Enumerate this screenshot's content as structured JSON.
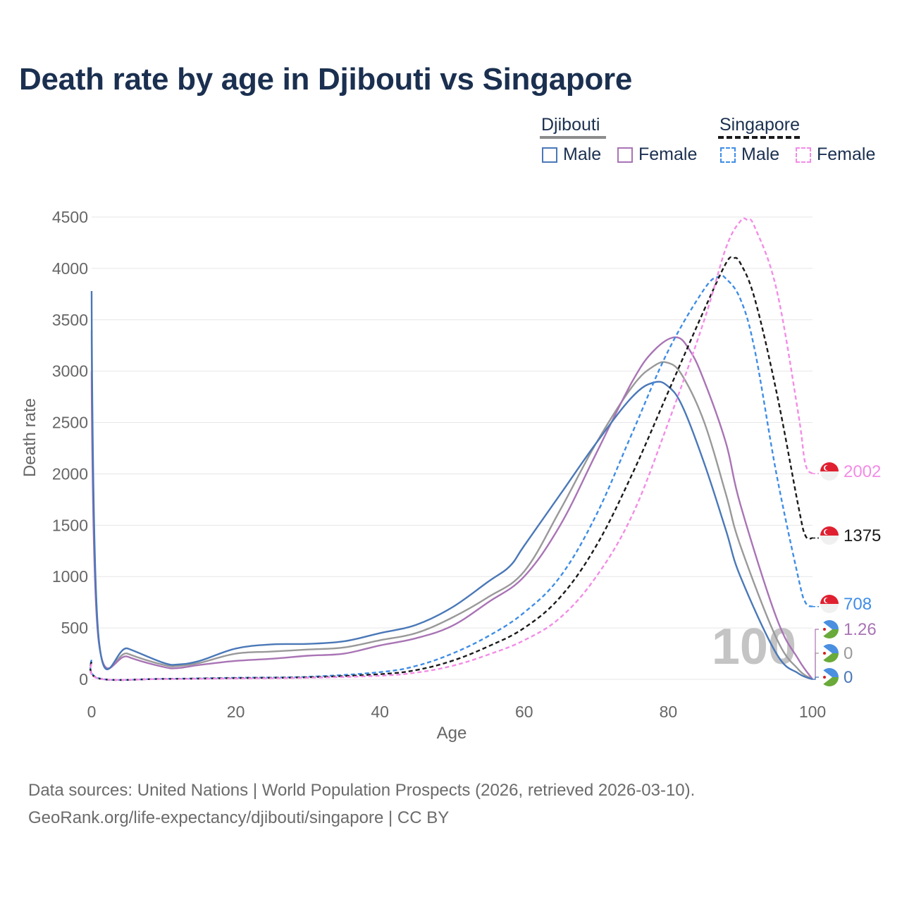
{
  "title": "Death rate by age in Djibouti vs Singapore",
  "legend": {
    "groups": [
      {
        "name": "Djibouti",
        "line_style": "solid",
        "line_color": "#8c8c8c",
        "items": [
          {
            "label": "Male",
            "color": "#4a78b8"
          },
          {
            "label": "Female",
            "color": "#a974b5"
          }
        ]
      },
      {
        "name": "Singapore",
        "line_style": "dashed",
        "line_color": "#1a1a1a",
        "items": [
          {
            "label": "Male",
            "color": "#3f8de6"
          },
          {
            "label": "Female",
            "color": "#f38ce6"
          }
        ]
      }
    ]
  },
  "chart_data": {
    "type": "line",
    "title": "Death rate by age in Djibouti vs Singapore",
    "xlabel": "Age",
    "ylabel": "Death rate",
    "xlim": [
      0,
      100
    ],
    "ylim": [
      0,
      4500
    ],
    "x_ticks": [
      0,
      20,
      40,
      60,
      80,
      100
    ],
    "y_ticks": [
      0,
      500,
      1000,
      1500,
      2000,
      2500,
      3000,
      3500,
      4000,
      4500
    ],
    "grid": true,
    "age_watermark": "100",
    "series": [
      {
        "name": "Djibouti Total",
        "country": "Djibouti",
        "sex": "Total",
        "color": "#999999",
        "dash": "solid",
        "points": [
          [
            0,
            3400
          ],
          [
            1,
            380
          ],
          [
            5,
            250
          ],
          [
            10,
            140
          ],
          [
            12,
            130
          ],
          [
            15,
            160
          ],
          [
            20,
            250
          ],
          [
            25,
            270
          ],
          [
            30,
            290
          ],
          [
            35,
            310
          ],
          [
            40,
            380
          ],
          [
            45,
            450
          ],
          [
            50,
            600
          ],
          [
            55,
            800
          ],
          [
            60,
            1050
          ],
          [
            65,
            1650
          ],
          [
            70,
            2300
          ],
          [
            75,
            2850
          ],
          [
            78,
            3050
          ],
          [
            80,
            3080
          ],
          [
            82,
            2950
          ],
          [
            85,
            2500
          ],
          [
            88,
            1800
          ],
          [
            90,
            1300
          ],
          [
            95,
            400
          ],
          [
            98,
            100
          ],
          [
            100,
            0
          ]
        ],
        "end_value": "0"
      },
      {
        "name": "Djibouti Female",
        "country": "Djibouti",
        "sex": "Female",
        "color": "#a974b5",
        "dash": "solid",
        "points": [
          [
            0,
            3000
          ],
          [
            1,
            360
          ],
          [
            5,
            220
          ],
          [
            10,
            120
          ],
          [
            12,
            110
          ],
          [
            15,
            140
          ],
          [
            20,
            180
          ],
          [
            25,
            200
          ],
          [
            30,
            230
          ],
          [
            35,
            250
          ],
          [
            40,
            330
          ],
          [
            45,
            400
          ],
          [
            50,
            520
          ],
          [
            55,
            750
          ],
          [
            60,
            1000
          ],
          [
            65,
            1500
          ],
          [
            70,
            2200
          ],
          [
            75,
            2900
          ],
          [
            78,
            3200
          ],
          [
            81,
            3330
          ],
          [
            83,
            3200
          ],
          [
            85,
            2900
          ],
          [
            88,
            2300
          ],
          [
            90,
            1700
          ],
          [
            95,
            600
          ],
          [
            98,
            200
          ],
          [
            100,
            1.26
          ]
        ],
        "end_value": "1.26"
      },
      {
        "name": "Djibouti Male",
        "country": "Djibouti",
        "sex": "Male",
        "color": "#4a78b8",
        "dash": "solid",
        "points": [
          [
            0,
            3780
          ],
          [
            1,
            390
          ],
          [
            5,
            300
          ],
          [
            10,
            160
          ],
          [
            12,
            145
          ],
          [
            15,
            180
          ],
          [
            20,
            300
          ],
          [
            25,
            340
          ],
          [
            30,
            345
          ],
          [
            35,
            370
          ],
          [
            40,
            450
          ],
          [
            45,
            530
          ],
          [
            50,
            700
          ],
          [
            55,
            950
          ],
          [
            58,
            1100
          ],
          [
            60,
            1300
          ],
          [
            65,
            1800
          ],
          [
            70,
            2300
          ],
          [
            75,
            2750
          ],
          [
            78,
            2890
          ],
          [
            80,
            2850
          ],
          [
            82,
            2650
          ],
          [
            85,
            2100
          ],
          [
            88,
            1450
          ],
          [
            90,
            1000
          ],
          [
            95,
            250
          ],
          [
            98,
            60
          ],
          [
            100,
            0
          ]
        ],
        "end_value": "0"
      },
      {
        "name": "Singapore Male",
        "country": "Singapore",
        "sex": "Male",
        "color": "#3f8de6",
        "dash": "dashed",
        "points": [
          [
            0,
            190
          ],
          [
            1,
            10
          ],
          [
            10,
            5
          ],
          [
            20,
            15
          ],
          [
            30,
            25
          ],
          [
            40,
            70
          ],
          [
            45,
            130
          ],
          [
            50,
            250
          ],
          [
            55,
            420
          ],
          [
            60,
            650
          ],
          [
            65,
            1000
          ],
          [
            70,
            1600
          ],
          [
            75,
            2400
          ],
          [
            80,
            3200
          ],
          [
            85,
            3800
          ],
          [
            87,
            3920
          ],
          [
            88,
            3900
          ],
          [
            90,
            3700
          ],
          [
            92,
            3200
          ],
          [
            95,
            2000
          ],
          [
            98,
            1000
          ],
          [
            99,
            750
          ],
          [
            100,
            708
          ]
        ],
        "end_value": "708"
      },
      {
        "name": "Singapore Total",
        "country": "Singapore",
        "sex": "Total",
        "color": "#1a1a1a",
        "dash": "dashed",
        "points": [
          [
            0,
            170
          ],
          [
            1,
            8
          ],
          [
            10,
            4
          ],
          [
            20,
            12
          ],
          [
            30,
            20
          ],
          [
            40,
            50
          ],
          [
            45,
            90
          ],
          [
            50,
            180
          ],
          [
            55,
            320
          ],
          [
            60,
            500
          ],
          [
            65,
            800
          ],
          [
            70,
            1300
          ],
          [
            75,
            2000
          ],
          [
            80,
            2800
          ],
          [
            85,
            3600
          ],
          [
            88,
            4050
          ],
          [
            89,
            4100
          ],
          [
            90,
            4050
          ],
          [
            92,
            3700
          ],
          [
            95,
            2800
          ],
          [
            98,
            1700
          ],
          [
            99,
            1400
          ],
          [
            100,
            1375
          ]
        ],
        "end_value": "1375"
      },
      {
        "name": "Singapore Female",
        "country": "Singapore",
        "sex": "Female",
        "color": "#f38ce6",
        "dash": "dashed",
        "points": [
          [
            0,
            150
          ],
          [
            1,
            7
          ],
          [
            10,
            3
          ],
          [
            20,
            8
          ],
          [
            30,
            15
          ],
          [
            40,
            35
          ],
          [
            45,
            65
          ],
          [
            50,
            130
          ],
          [
            55,
            240
          ],
          [
            60,
            380
          ],
          [
            65,
            600
          ],
          [
            70,
            1000
          ],
          [
            75,
            1600
          ],
          [
            80,
            2500
          ],
          [
            85,
            3500
          ],
          [
            88,
            4200
          ],
          [
            90,
            4460
          ],
          [
            91,
            4470
          ],
          [
            92,
            4400
          ],
          [
            95,
            3800
          ],
          [
            98,
            2600
          ],
          [
            99,
            2100
          ],
          [
            100,
            2002
          ]
        ],
        "end_value": "2002"
      }
    ]
  },
  "source": {
    "line1": "Data sources: United Nations | World Population Prospects (2026, retrieved 2026-03-10).",
    "line2": "GeoRank.org/life-expectancy/djibouti/singapore | CC BY"
  }
}
